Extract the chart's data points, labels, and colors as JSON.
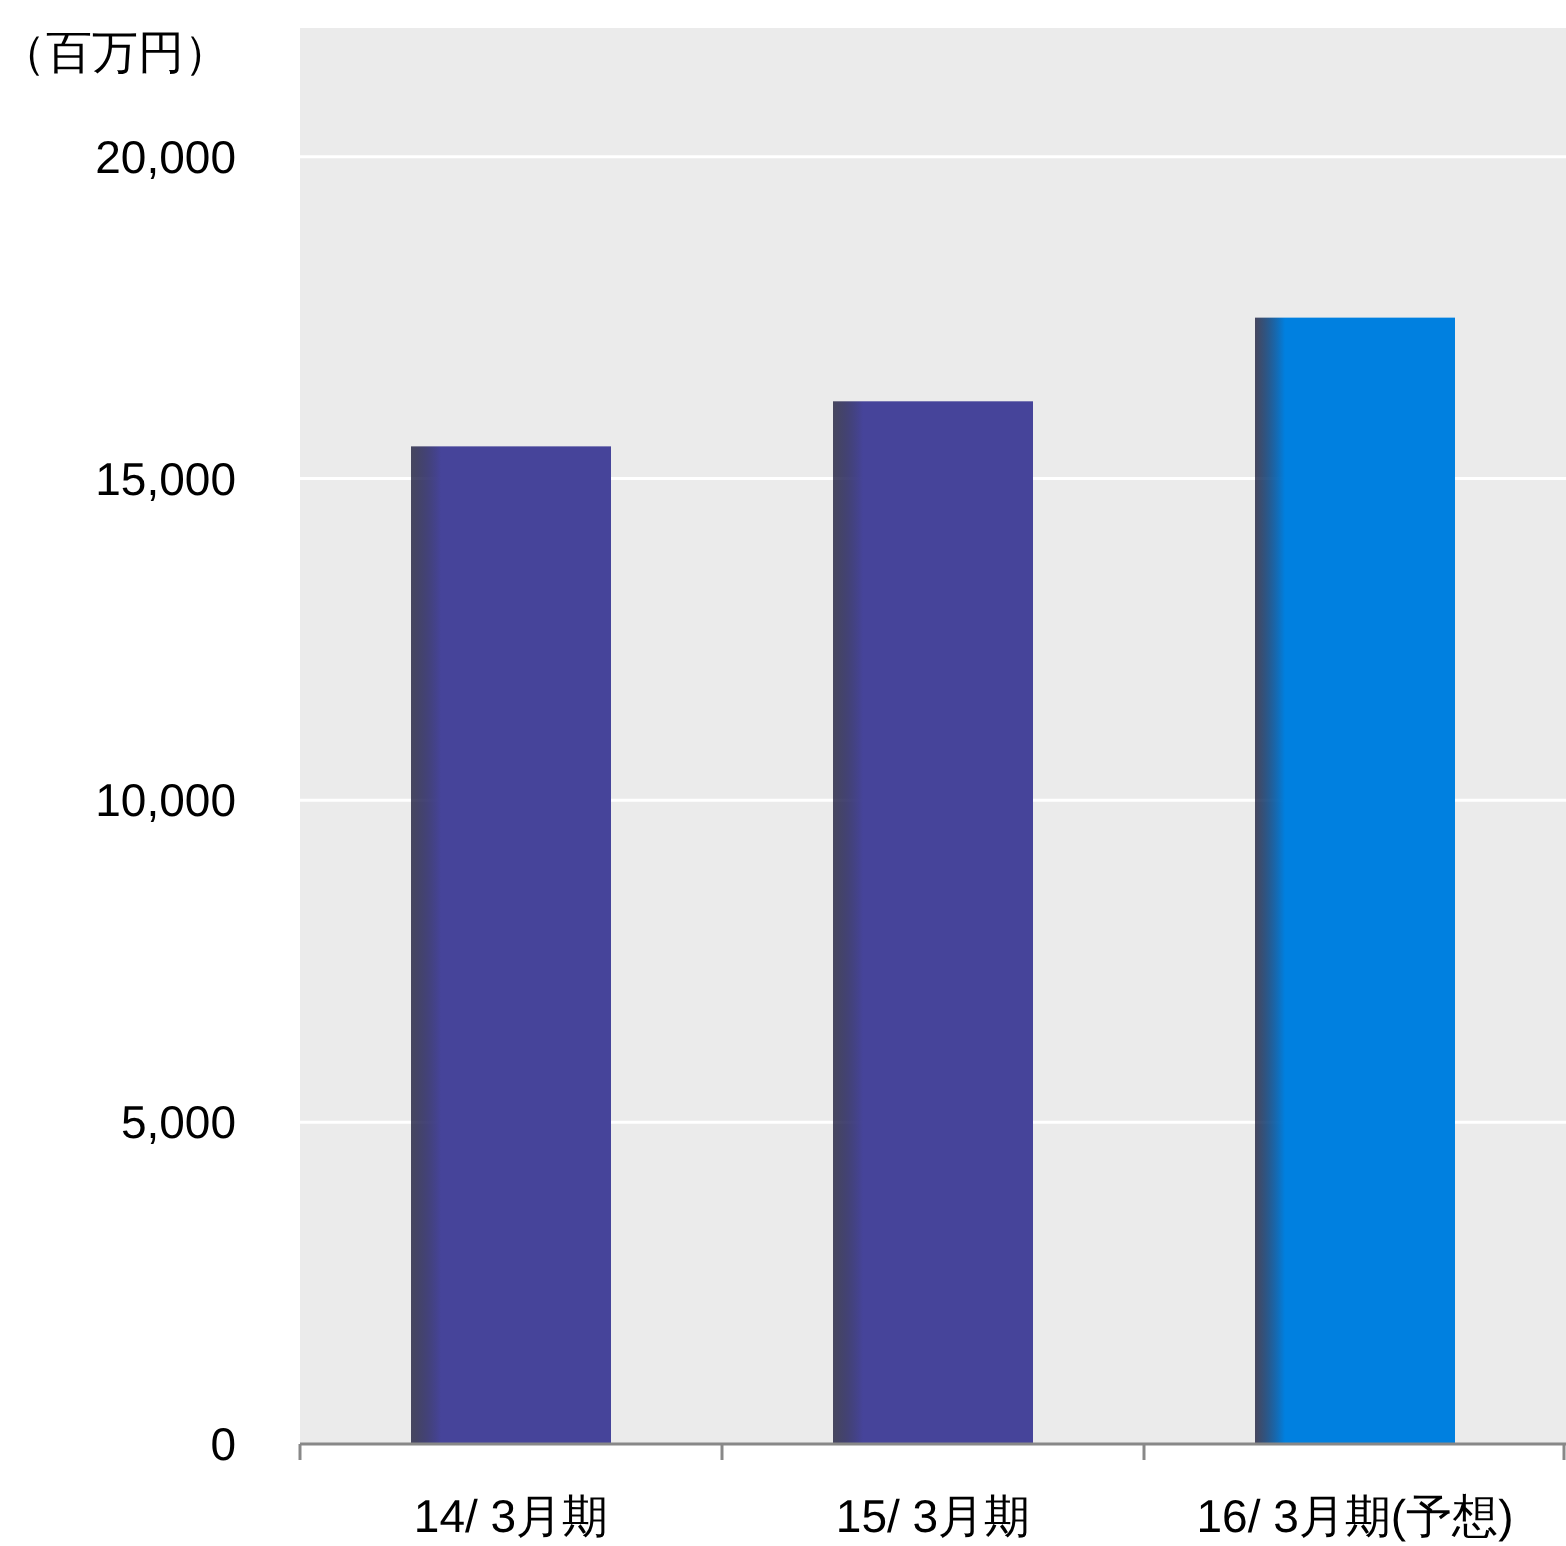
{
  "chart_data": {
    "type": "bar",
    "ylabel": "（百万円）",
    "categories": [
      "14/ 3月期",
      "15/ 3月期",
      "16/ 3月期(予想)"
    ],
    "values": [
      15500,
      16200,
      17500
    ],
    "colors": [
      "#46449a",
      "#46449a",
      "#0080e0"
    ],
    "ylim": [
      0,
      22000
    ],
    "yticks": [
      {
        "value": 0,
        "label": "0"
      },
      {
        "value": 5000,
        "label": "5,000"
      },
      {
        "value": 10000,
        "label": "10,000"
      },
      {
        "value": 15000,
        "label": "15,000"
      },
      {
        "value": 20000,
        "label": "20,000"
      }
    ],
    "grid": "y"
  }
}
